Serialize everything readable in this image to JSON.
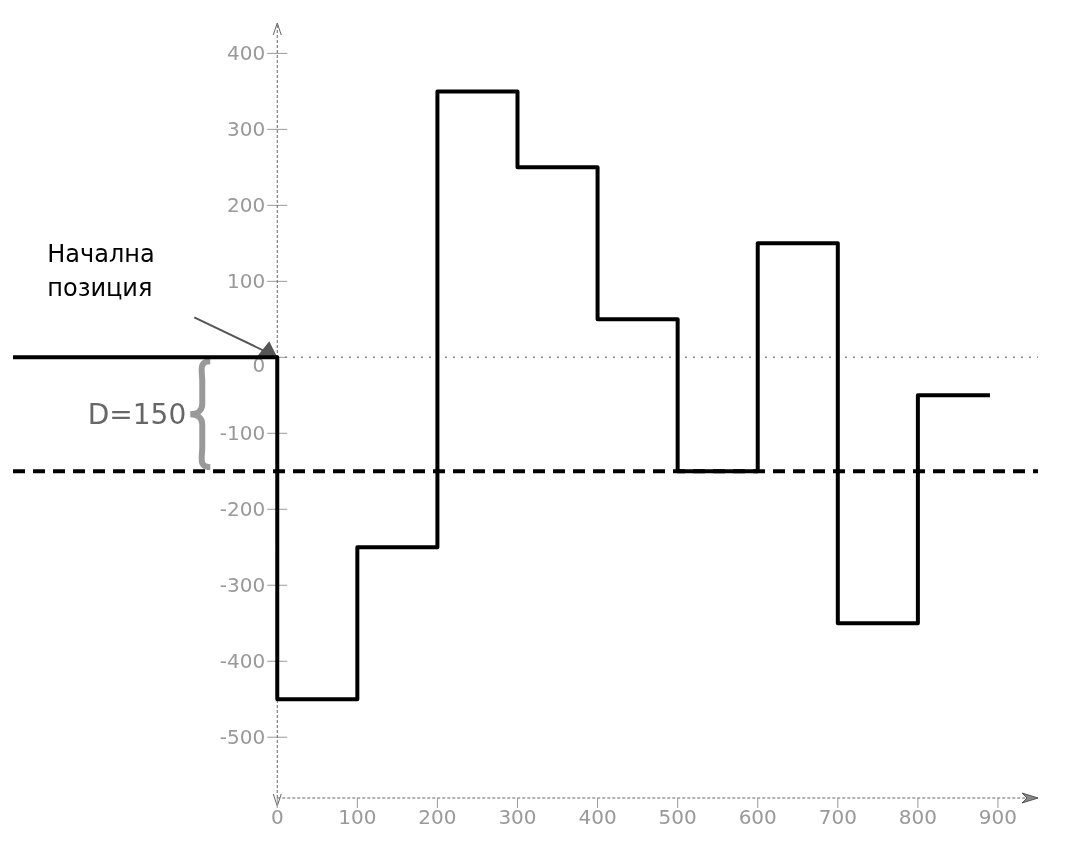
{
  "chart_data": {
    "type": "step",
    "color": "#000000",
    "x": [
      -330,
      0,
      100,
      200,
      300,
      400,
      500,
      600,
      700,
      800,
      890
    ],
    "values": [
      0,
      -450,
      -250,
      350,
      250,
      50,
      -150,
      150,
      -350,
      -50,
      -50
    ],
    "xlim": [
      -330,
      950
    ],
    "xticks": [
      0,
      100,
      200,
      300,
      400,
      500,
      600,
      700,
      800,
      900
    ],
    "ylim": [
      -580,
      440
    ],
    "yticks": [
      -500,
      -400,
      -300,
      -200,
      -100,
      0,
      100,
      200,
      300,
      400
    ],
    "marker": "none",
    "line_style": "solid",
    "ref_lines": [
      {
        "axis": "x",
        "value": 0,
        "color": "#666666",
        "line_style": "dashed"
      },
      {
        "axis": "y",
        "value": 0,
        "color": "#888888",
        "line_style": "dotted"
      },
      {
        "axis": "y",
        "value": -150,
        "color": "#000000",
        "line_style": "dashed"
      }
    ],
    "annotations": [
      "Начална позиция",
      "D=150"
    ]
  }
}
